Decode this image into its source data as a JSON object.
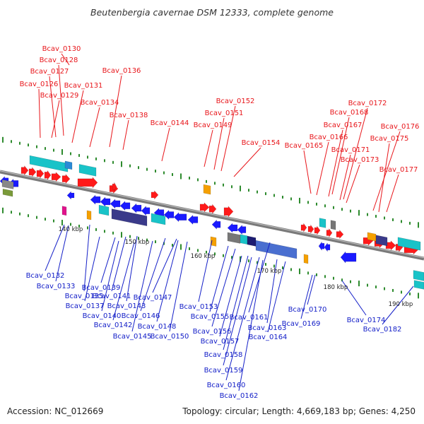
{
  "title": "Beutenbergia cavernae DSM 12333, complete genome",
  "footer": {
    "accession": "Accession: NC_012669",
    "info": "Topology: circular; Length: 4,669,183 bp; Genes: 4,250"
  },
  "scale_labels": [
    "140 kbp",
    "150 kbp",
    "160 kbp",
    "170 kbp",
    "180 kbp",
    "190 kbp"
  ],
  "top_labels": [
    "Bcav_0130",
    "Bcav_0128",
    "Bcav_0127",
    "Bcav_0136",
    "Bcav_0126",
    "Bcav_0131",
    "Bcav_0129",
    "Bcav_0134",
    "Bcav_0138",
    "Bcav_0144",
    "Bcav_0152",
    "Bcav_0151",
    "Bcav_0149",
    "Bcav_0154",
    "Bcav_0172",
    "Bcav_0168",
    "Bcav_0167",
    "Bcav_0176",
    "Bcav_0166",
    "Bcav_0165",
    "Bcav_0175",
    "Bcav_0171",
    "Bcav_0173",
    "Bcav_0177"
  ],
  "bottom_labels": [
    "Bcav_0132",
    "Bcav_0133",
    "Bcav_0139",
    "Bcav_0135",
    "Bcav_0141",
    "Bcav_0147",
    "Bcav_0137",
    "Bcav_0143",
    "Bcav_0140",
    "Bcav_0146",
    "Bcav_0142",
    "Bcav_0148",
    "Bcav_0145",
    "Bcav_0150",
    "Bcav_0153",
    "Bcav_0155",
    "Bcav_0161",
    "Bcav_0156",
    "Bcav_0163",
    "Bcav_0157",
    "Bcav_0164",
    "Bcav_0158",
    "Bcav_0159",
    "Bcav_0160",
    "Bcav_0162",
    "Bcav_0170",
    "Bcav_0169",
    "Bcav_0174",
    "Bcav_0182"
  ],
  "colors": {
    "forward": "#ff1a1a",
    "reverse": "#1a1aff",
    "top_label": "#e8161b",
    "bottom_label": "#1520c8",
    "rna_cyan": "#19c3c8",
    "other_orange": "#f5a000",
    "pseudo_magenta": "#e0148c",
    "navy": "#3a3a8a",
    "backbone": "#7a7a7a",
    "tick": "#2e8b2e"
  }
}
